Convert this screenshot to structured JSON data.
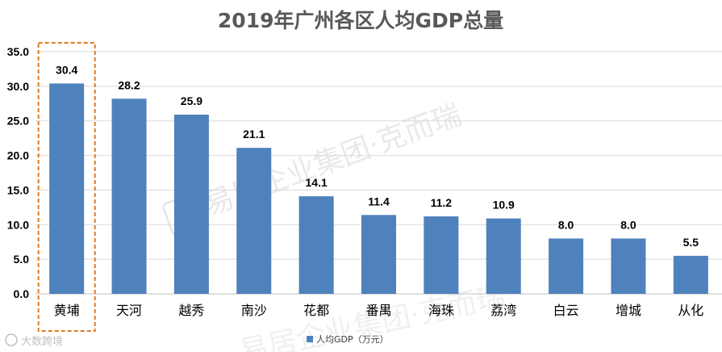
{
  "chart_data": {
    "type": "bar",
    "title": "2019年广州各区人均GDP总量",
    "categories": [
      "黄埔",
      "天河",
      "越秀",
      "南沙",
      "花都",
      "番禺",
      "海珠",
      "荔湾",
      "白云",
      "增城",
      "从化"
    ],
    "series": [
      {
        "name": "人均GDP（万元）",
        "values": [
          30.4,
          28.2,
          25.9,
          21.1,
          14.1,
          11.4,
          11.2,
          10.9,
          8.0,
          8.0,
          5.5
        ],
        "labels": [
          "30.4",
          "28.2",
          "25.9",
          "21.1",
          "14.1",
          "11.4",
          "11.2",
          "10.9",
          "8.0",
          "8.0",
          "5.5"
        ]
      }
    ],
    "yticks": [
      "0.0",
      "5.0",
      "10.0",
      "15.0",
      "20.0",
      "25.0",
      "30.0",
      "35.0"
    ],
    "ylim": [
      0,
      35
    ],
    "grid": true,
    "legend_position": "bottom",
    "highlighted_category": "黄埔",
    "colors": {
      "bar": "#4f81bd",
      "highlight_box": "#e07b22",
      "grid": "#d9d9d9"
    }
  },
  "watermark": {
    "text": "易居企业集团·克而瑞",
    "logo_text": "大数跨境"
  }
}
